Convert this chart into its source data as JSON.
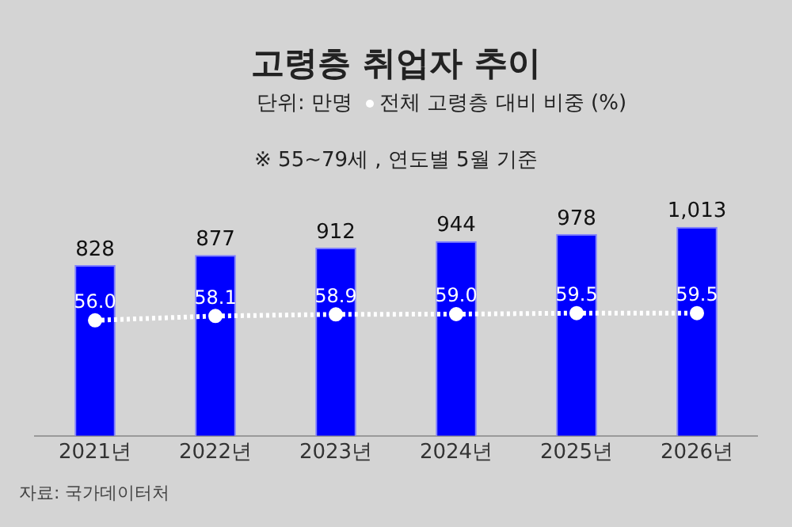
{
  "chart_data": {
    "type": "bar",
    "title": "고령층 취업자 추이",
    "subtitle": "단위: 만명",
    "annotations": [
      "※ 55~79세 , 연도별 5월 기준",
      "자료: 국가데이터처"
    ],
    "categories": [
      "2021년",
      "2022년",
      "2023년",
      "2024년",
      "2025년",
      "2026년"
    ],
    "series": [
      {
        "color": "#0000ff",
        "values": [
          828,
          877,
          912,
          944,
          978,
          1013
        ],
        "value_labels": [
          "828",
          "877",
          "912",
          "944",
          "978",
          "1,013"
        ]
      },
      {
        "type": "line",
        "axis": "y2",
        "name": "전체 고령층 대비 비중 (%)",
        "color": "#ffffff",
        "values": [
          56.0,
          58.1,
          58.9,
          59.0,
          59.5,
          59.5
        ],
        "value_labels": [
          "56.0",
          "58.1",
          "58.9",
          "59.0",
          "59.5",
          "59.5"
        ]
      }
    ],
    "tick_labels": "x",
    "grid": false,
    "legend": "top",
    "marker": "circle",
    "line_style": "dotted"
  }
}
